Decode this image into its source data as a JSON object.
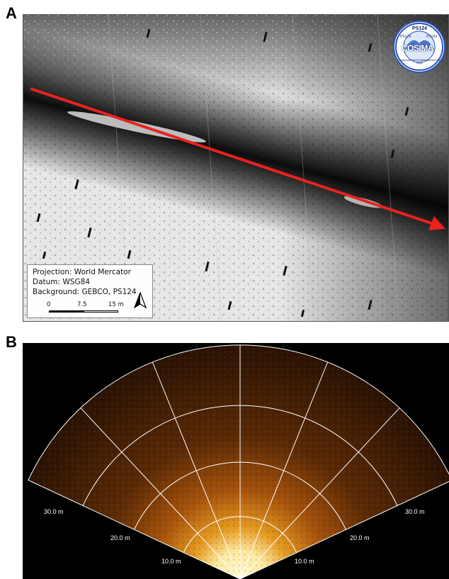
{
  "panels": {
    "a": {
      "letter": "A",
      "legend": {
        "projection": "Projection: World Mercator",
        "datum": "Datum: WSG84",
        "background": "Background: GEBCO, PS124",
        "scale_ticks": [
          "0",
          "7.5",
          "15 m"
        ]
      },
      "logo": {
        "top_text": "PS124",
        "left_text": "PS124",
        "right_text": "PS124",
        "main_text": "COSIMA",
        "ring_text": "Continental Shelf Multidisciplinary Flux Study",
        "colors": {
          "ring": "#2c55b5",
          "fill": "#ffffff"
        }
      },
      "arrow_color": "#e8221f"
    },
    "b": {
      "letter": "B",
      "range_labels": [
        "10.0 m",
        "20.0 m",
        "30.0 m"
      ],
      "colors": {
        "bright": "#fff6c8",
        "mid": "#e08a14",
        "dark": "#3a1a04",
        "grid": "#ffffff"
      }
    }
  }
}
